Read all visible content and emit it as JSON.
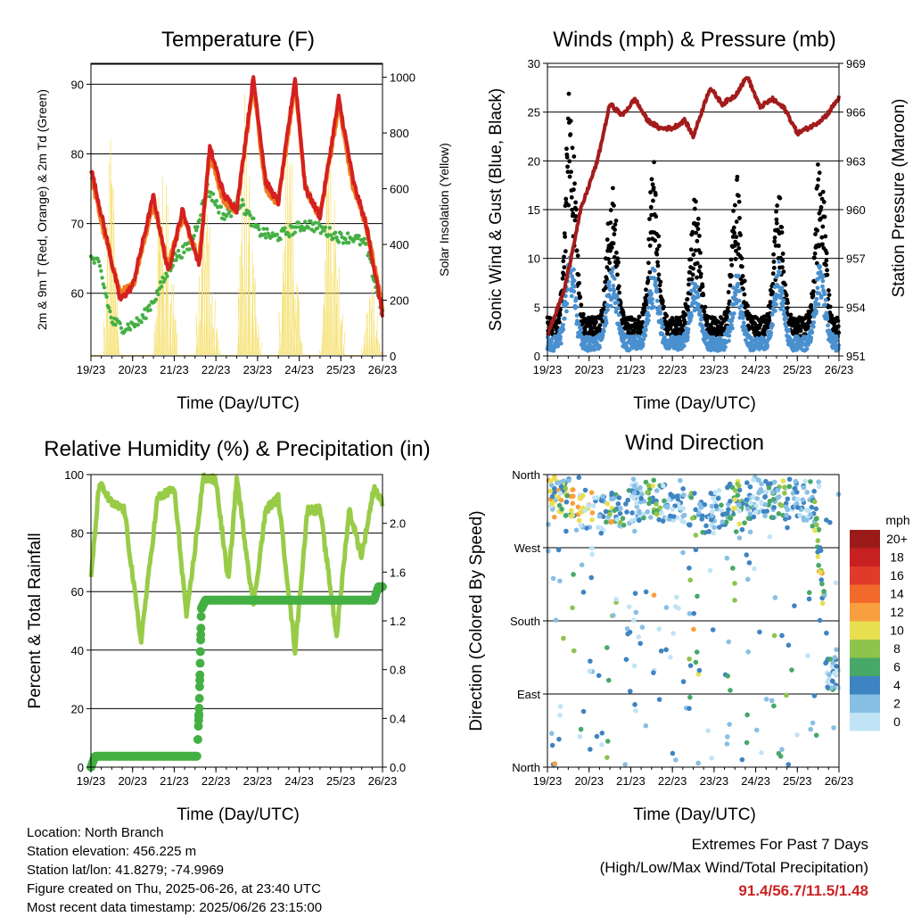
{
  "panels": {
    "temperature": {
      "title": "Temperature (F)",
      "xlabel": "Time (Day/UTC)",
      "ylabel_left": "2m & 9m T (Red, Orange) & 2m Td (Green)",
      "ylabel_right": "Solar Insolation (Yellow)"
    },
    "winds": {
      "title": "Winds (mph) & Pressure (mb)",
      "xlabel": "Time (Day/UTC)",
      "ylabel_left": "Sonic Wind & Gust (Blue, Black)",
      "ylabel_right": "Station Pressure (Maroon)"
    },
    "humidity": {
      "title": "Relative Humidity (%) & Precipitation (in)",
      "xlabel": "Time (Day/UTC)",
      "ylabel_left": "Percent & Total Rainfall"
    },
    "direction": {
      "title": "Wind Direction",
      "xlabel": "Time (Day/UTC)",
      "ylabel_left": "Direction (Colored By Speed)"
    }
  },
  "footer": {
    "location": "Location: North Branch",
    "elevation": "Station elevation: 456.225 m",
    "latlon": "Station lat/lon: 41.8279; -74.9969",
    "created": "Figure created on Thu, 2025-06-26, at 23:40 UTC",
    "recent": "Most recent data timestamp: 2025/06/26 23:15:00"
  },
  "extremes": {
    "title": "Extremes For Past 7 Days",
    "subtitle": "(High/Low/Max Wind/Total Precipitation)",
    "values": "91.4/56.7/11.5/1.48",
    "color": "#cc2222"
  },
  "colors": {
    "temp_2m": "#d42020",
    "temp_9m": "#f07c1c",
    "dewpoint": "#44b044",
    "solar": "#f5de60",
    "wind": "#4a90cf",
    "gust": "#000000",
    "pressure": "#a31b1b",
    "rh": "#98cc48",
    "precip": "#44b044"
  },
  "chart_data": [
    {
      "type": "line",
      "title": "Temperature (F)",
      "xlabel": "Time (Day/UTC)",
      "ylabel": "2m & 9m T (Red, Orange) & 2m Td (Green)",
      "y2label": "Solar Insolation (Yellow)",
      "x_ticks": [
        "19/23",
        "20/23",
        "21/23",
        "22/23",
        "23/23",
        "24/23",
        "25/23",
        "26/23"
      ],
      "y_ticks": [
        60,
        70,
        80,
        90
      ],
      "y2_ticks": [
        0,
        200,
        400,
        600,
        800,
        1000
      ],
      "ylim": [
        51,
        93
      ],
      "y2lim": [
        0,
        1050
      ],
      "grid": true,
      "series": [
        {
          "name": "2m T",
          "x_days": [
            0,
            0.3,
            0.7,
            1.0,
            1.5,
            1.85,
            2.2,
            2.6,
            2.85,
            3.2,
            3.5,
            3.9,
            4.2,
            4.5,
            4.9,
            5.15,
            5.5,
            5.95,
            6.3,
            6.6,
            7.0
          ],
          "values": [
            78,
            70,
            59,
            61,
            74,
            63,
            72,
            64,
            81,
            74,
            72,
            91,
            76,
            73,
            91,
            75,
            71,
            88,
            76,
            70,
            57
          ]
        },
        {
          "name": "9m T",
          "x_days": [
            0,
            0.3,
            0.7,
            1.0,
            1.5,
            1.85,
            2.2,
            2.6,
            2.85,
            3.2,
            3.5,
            3.9,
            4.2,
            4.5,
            4.9,
            5.15,
            5.5,
            5.95,
            6.3,
            6.6,
            7.0
          ],
          "values": [
            77,
            69,
            60,
            61,
            73,
            64,
            71,
            65,
            80,
            73,
            72,
            90,
            75,
            73,
            90,
            75,
            71,
            87,
            75,
            70,
            58
          ]
        },
        {
          "name": "2m Td",
          "x_days": [
            0,
            0.2,
            0.5,
            0.8,
            1.2,
            1.6,
            2.0,
            2.4,
            2.8,
            3.2,
            3.6,
            4.0,
            4.4,
            4.8,
            5.2,
            5.6,
            6.0,
            6.3,
            6.6,
            6.8,
            7.0
          ],
          "values": [
            65,
            64,
            56,
            55,
            56,
            60,
            65,
            67,
            75,
            71,
            73,
            69,
            68,
            69,
            70,
            69,
            68,
            68,
            67,
            62,
            57
          ]
        },
        {
          "name": "Solar Insolation",
          "x_days": [
            0,
            0.3,
            0.5,
            0.7,
            1.1,
            1.5,
            1.7,
            2.1,
            2.5,
            2.7,
            3.1,
            3.5,
            3.7,
            4.1,
            4.5,
            4.7,
            5.1,
            5.5,
            5.7,
            6.1,
            6.5,
            6.7,
            7.0
          ],
          "values": [
            0,
            0,
            1000,
            0,
            0,
            0,
            950,
            0,
            0,
            750,
            0,
            0,
            960,
            0,
            0,
            950,
            0,
            0,
            920,
            0,
            0,
            300,
            0
          ],
          "axis": "right"
        }
      ]
    },
    {
      "type": "scatter",
      "title": "Winds (mph) & Pressure (mb)",
      "xlabel": "Time (Day/UTC)",
      "ylabel": "Sonic Wind & Gust (Blue, Black)",
      "y2label": "Station Pressure (Maroon)",
      "x_ticks": [
        "19/23",
        "20/23",
        "21/23",
        "22/23",
        "23/23",
        "24/23",
        "25/23",
        "26/23"
      ],
      "y_ticks": [
        0,
        5,
        10,
        15,
        20,
        25,
        30
      ],
      "y2_ticks": [
        951,
        954,
        957,
        960,
        963,
        966,
        969
      ],
      "ylim": [
        0,
        30
      ],
      "y2lim": [
        951,
        969
      ],
      "grid": true,
      "series": [
        {
          "name": "Station Pressure",
          "axis": "right",
          "x_days": [
            0,
            0.4,
            0.8,
            1.2,
            1.5,
            1.8,
            2.1,
            2.4,
            2.7,
            3.0,
            3.3,
            3.5,
            3.9,
            4.2,
            4.5,
            4.8,
            5.1,
            5.4,
            5.7,
            6.0,
            6.4,
            6.7,
            7.0
          ],
          "values": [
            952.3,
            955.0,
            960.0,
            963.0,
            966.5,
            965.8,
            966.8,
            965.5,
            965.0,
            965.0,
            965.5,
            964.5,
            967.5,
            966.5,
            967.0,
            968.2,
            966.3,
            966.8,
            966.2,
            964.7,
            965.2,
            965.8,
            966.9
          ]
        },
        {
          "name": "Gust (daily peak)",
          "x_days": [
            0.5,
            1.5,
            2.5,
            3.5,
            4.5,
            5.5,
            6.5
          ],
          "values": [
            28,
            17,
            19,
            15,
            18,
            16,
            20
          ]
        },
        {
          "name": "Sonic Wind (daily peak)",
          "x_days": [
            0.5,
            1.5,
            2.5,
            3.5,
            4.5,
            5.5,
            6.5
          ],
          "values": [
            11,
            9,
            9,
            8,
            8,
            9,
            10
          ]
        }
      ]
    },
    {
      "type": "line",
      "title": "Relative Humidity (%) & Precipitation (in)",
      "xlabel": "Time (Day/UTC)",
      "ylabel": "Percent & Total Rainfall",
      "x_ticks": [
        "19/23",
        "20/23",
        "21/23",
        "22/23",
        "23/23",
        "24/23",
        "25/23",
        "26/23"
      ],
      "y_ticks": [
        0,
        20,
        40,
        60,
        80,
        100
      ],
      "y2_ticks": [
        "0.0",
        "0.4",
        "0.8",
        "1.2",
        "1.6",
        "2.0"
      ],
      "ylim": [
        0,
        100
      ],
      "y2lim": [
        0,
        2.4
      ],
      "grid": true,
      "series": [
        {
          "name": "Relative Humidity",
          "x_days": [
            0,
            0.2,
            0.5,
            0.8,
            1.2,
            1.6,
            2.0,
            2.3,
            2.7,
            3.0,
            3.3,
            3.5,
            3.9,
            4.2,
            4.5,
            4.9,
            5.2,
            5.5,
            5.9,
            6.2,
            6.5,
            6.8,
            7.0
          ],
          "values": [
            64,
            97,
            90,
            88,
            43,
            92,
            95,
            51,
            99,
            98,
            63,
            99,
            55,
            88,
            92,
            40,
            88,
            88,
            45,
            88,
            72,
            96,
            90
          ]
        },
        {
          "name": "Total Precipitation",
          "axis": "right",
          "x_days": [
            0,
            0.1,
            2.55,
            2.6,
            2.65,
            2.75,
            6.8,
            6.9,
            7.0
          ],
          "values": [
            0.0,
            0.09,
            0.09,
            0.5,
            1.3,
            1.37,
            1.37,
            1.48,
            1.48
          ]
        }
      ]
    },
    {
      "type": "scatter",
      "title": "Wind Direction",
      "xlabel": "Time (Day/UTC)",
      "ylabel": "Direction (Colored By Speed)",
      "x_ticks": [
        "19/23",
        "20/23",
        "21/23",
        "22/23",
        "23/23",
        "24/23",
        "25/23",
        "26/23"
      ],
      "y_ticks": [
        "North",
        "East",
        "South",
        "West",
        "North"
      ],
      "colorbar": {
        "title": "mph",
        "labels": [
          "20+",
          "18",
          "16",
          "14",
          "12",
          "10",
          "8",
          "6",
          "4",
          "2",
          "0"
        ],
        "colors": [
          "#9b1b1b",
          "#c62020",
          "#e03a2a",
          "#f26a2a",
          "#f8a040",
          "#e8df50",
          "#8ec44c",
          "#48a868",
          "#3f84c2",
          "#88bfe4",
          "#c0e4f6"
        ]
      },
      "series": [
        {
          "name": "Direction clusters (deg)",
          "x_days": [
            0.2,
            0.5,
            1.2,
            1.8,
            2.5,
            3.2,
            3.8,
            4.5,
            5.2,
            5.8,
            6.4,
            6.85
          ],
          "values": [
            340,
            330,
            310,
            320,
            330,
            320,
            310,
            330,
            330,
            330,
            320,
            115
          ]
        }
      ]
    }
  ]
}
